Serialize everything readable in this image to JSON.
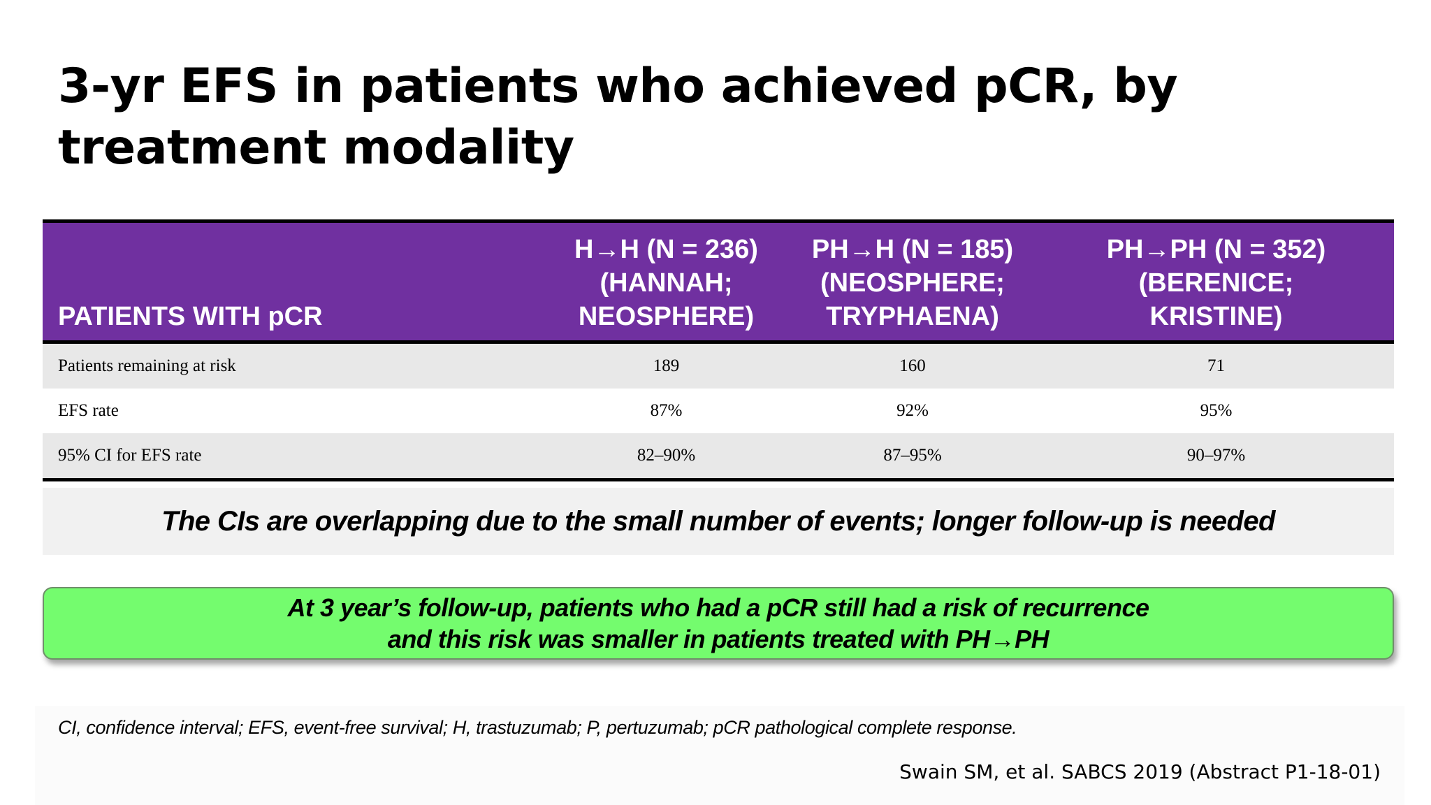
{
  "title": "3-yr EFS in patients who achieved pCR, by treatment modality",
  "table": {
    "header": {
      "first": "PATIENTS WITH  pCR",
      "columns": [
        [
          "H→H (N = 236)",
          "(HANNAH;",
          "NEOSPHERE)"
        ],
        [
          "PH→H (N = 185)",
          "(NEOSPHERE;",
          "TRYPHAENA)"
        ],
        [
          "PH→PH (N = 352)",
          "(BERENICE;",
          "KRISTINE)"
        ]
      ]
    },
    "rows": [
      {
        "label": "Patients remaining at risk",
        "values": [
          "189",
          "160",
          "71"
        ]
      },
      {
        "label": "EFS rate",
        "values": [
          "87%",
          "92%",
          "95%"
        ]
      },
      {
        "label": "95% CI for EFS rate",
        "values": [
          "82–90%",
          "87–95%",
          "90–97%"
        ]
      }
    ]
  },
  "note": "The CIs are overlapping due to the small number of events; longer follow-up is needed",
  "callout": {
    "line1": "At 3 year’s follow-up, patients who had a pCR still had a risk of recurrence",
    "line2": "and this risk was smaller in patients treated with PH→PH"
  },
  "footnote": "CI, confidence interval; EFS, event-free survival; H, trastuzumab; P, pertuzumab; pCR pathological complete response.",
  "citation": "Swain SM, et al. SABCS 2019 (Abstract P1-18-01)",
  "colors": {
    "header_bg": "#7030a0",
    "row_shade": "#e8e8e8",
    "callout_bg": "#74fc6e"
  }
}
